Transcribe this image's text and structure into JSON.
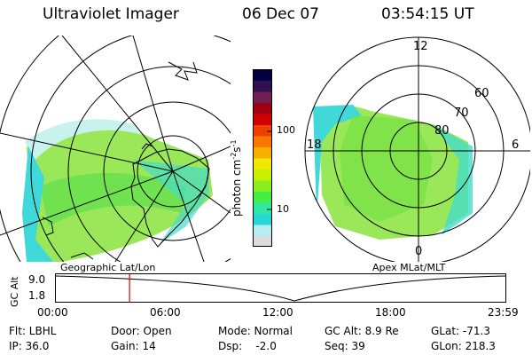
{
  "header": {
    "title": "Ultraviolet Imager",
    "date": "06 Dec 07",
    "time": "03:54:15 UT"
  },
  "left_panel": {
    "caption": "Geographic Lat/Lon"
  },
  "right_panel": {
    "caption": "Apex  MLat/MLT",
    "mlt_labels": {
      "top": "12",
      "left": "18",
      "right": "6",
      "bottom": "0"
    },
    "lat_labels": [
      "60",
      "70",
      "80"
    ]
  },
  "colorbar": {
    "label": "photon cm",
    "label_sup1": "-2",
    "label_mid": "s",
    "label_sup2": "-1",
    "ticks": [
      "100",
      "10"
    ],
    "colors": [
      "#dcdcdc",
      "#b4eef0",
      "#28d8d8",
      "#30e8a0",
      "#44ee44",
      "#88f020",
      "#c8f000",
      "#f0e800",
      "#f8b000",
      "#f87800",
      "#f04000",
      "#d00000",
      "#a00010",
      "#702050",
      "#301050",
      "#000040"
    ]
  },
  "altitude_plot": {
    "ylabel": "GC Alt",
    "yticks": [
      "9.0",
      "1.8"
    ],
    "xticks": [
      "00:00",
      "06:00",
      "12:00",
      "18:00",
      "23:59"
    ],
    "marker_time_fraction": 0.164,
    "marker_color": "#dd0000"
  },
  "status": {
    "filter": "Flt: LBHL",
    "ip": "IP: 36.0",
    "door": "Door: Open",
    "gain": "Gain: 14",
    "mode": "Mode: Normal",
    "dsp": "Dsp:    -2.0",
    "gc_alt": "GC Alt: 8.9 Re",
    "seq": "Seq: 39",
    "glat": "GLat: -71.3",
    "glon": "GLon: 218.3"
  }
}
